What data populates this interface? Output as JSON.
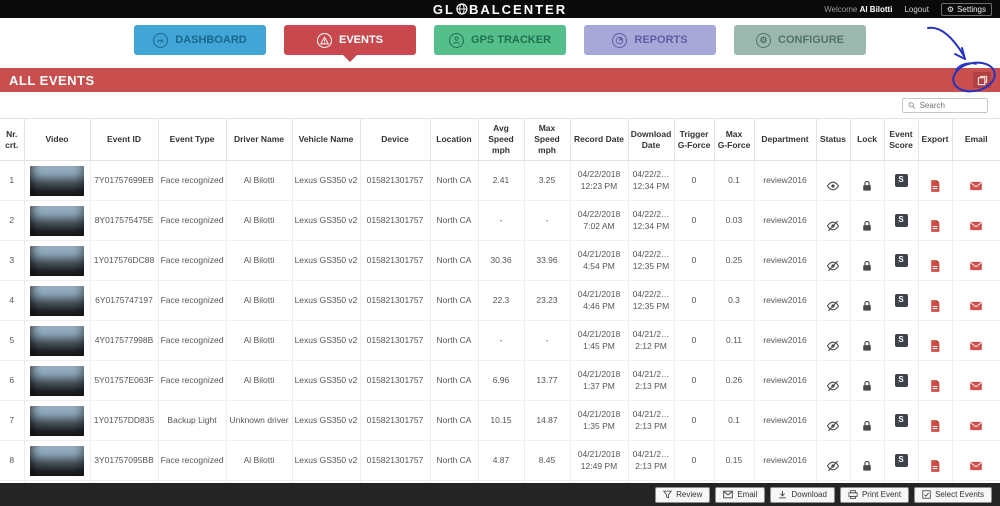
{
  "topbar": {
    "logo_prefix": "GL",
    "logo_suffix": "BALCENTER",
    "welcome_label": "Welcome",
    "user_name": "Al Bilotti",
    "logout_label": "Logout",
    "settings_label": "Settings"
  },
  "nav": {
    "tabs": [
      {
        "label": "DASHBOARD",
        "color": "#41a5d5",
        "active": false
      },
      {
        "label": "EVENTS",
        "color": "#c7494e",
        "active": true
      },
      {
        "label": "GPS TRACKER",
        "color": "#54bf8b",
        "active": false
      },
      {
        "label": "REPORTS",
        "color": "#a7a8d8",
        "active": false
      },
      {
        "label": "CONFIGURE",
        "color": "#9cb7ae",
        "active": false
      }
    ]
  },
  "banner": {
    "title": "ALL EVENTS",
    "color": "#c94f4f"
  },
  "search": {
    "placeholder": "Search"
  },
  "icons": {
    "settings_gear": "⚙",
    "configure_gear": "⚙",
    "score_badge": "S"
  },
  "colors": {
    "topbar_bg": "#0a0a0a",
    "accent_red": "#c7494e",
    "action_icon_red": "#d14f4a",
    "annotation_ink": "#2433c0"
  },
  "table": {
    "headers": [
      "Nr.\ncrt.",
      "Video",
      "Event ID",
      "Event Type",
      "Driver Name",
      "Vehicle Name",
      "Device",
      "Location",
      "Avg Speed\nmph",
      "Max Speed\nmph",
      "Record Date",
      "Download\nDate",
      "Trigger\nG-Force",
      "Max\nG-Force",
      "Department",
      "Status",
      "Lock",
      "Event\nScore",
      "Export",
      "Email"
    ],
    "rows": [
      {
        "nr": "1",
        "event_id": "7Y01757699EB",
        "event_type": "Face recognized",
        "driver": "Al Bilotti",
        "vehicle": "Lexus GS350 v2",
        "device": "015821301757",
        "location": "North CA",
        "avg_speed": "2.41",
        "max_speed": "3.25",
        "record_date": "04/22/2018\n12:23 PM",
        "download_date": "04/22/2…\n12:34 PM",
        "trigger_g": "0",
        "max_g": "0.1",
        "department": "review2016",
        "status": "visible"
      },
      {
        "nr": "2",
        "event_id": "8Y017575475E",
        "event_type": "Face recognized",
        "driver": "Al Bilotti",
        "vehicle": "Lexus GS350 v2",
        "device": "015821301757",
        "location": "North CA",
        "avg_speed": "-",
        "max_speed": "-",
        "record_date": "04/22/2018\n7:02 AM",
        "download_date": "04/22/2…\n12:34 PM",
        "trigger_g": "0",
        "max_g": "0.03",
        "department": "review2016",
        "status": "hidden"
      },
      {
        "nr": "3",
        "event_id": "1Y017576DC88",
        "event_type": "Face recognized",
        "driver": "Al Bilotti",
        "vehicle": "Lexus GS350 v2",
        "device": "015821301757",
        "location": "North CA",
        "avg_speed": "30.36",
        "max_speed": "33.96",
        "record_date": "04/21/2018\n4:54 PM",
        "download_date": "04/22/2…\n12:35 PM",
        "trigger_g": "0",
        "max_g": "0.25",
        "department": "review2016",
        "status": "hidden"
      },
      {
        "nr": "4",
        "event_id": "6Y0175747197",
        "event_type": "Face recognized",
        "driver": "Al Bilotti",
        "vehicle": "Lexus GS350 v2",
        "device": "015821301757",
        "location": "North CA",
        "avg_speed": "22.3",
        "max_speed": "23.23",
        "record_date": "04/21/2018\n4:46 PM",
        "download_date": "04/22/2…\n12:35 PM",
        "trigger_g": "0",
        "max_g": "0.3",
        "department": "review2016",
        "status": "hidden"
      },
      {
        "nr": "5",
        "event_id": "4Y017577998B",
        "event_type": "Face recognized",
        "driver": "Al Bilotti",
        "vehicle": "Lexus GS350 v2",
        "device": "015821301757",
        "location": "North CA",
        "avg_speed": "-",
        "max_speed": "-",
        "record_date": "04/21/2018\n1:45 PM",
        "download_date": "04/21/2…\n2:12 PM",
        "trigger_g": "0",
        "max_g": "0.11",
        "department": "review2016",
        "status": "hidden"
      },
      {
        "nr": "6",
        "event_id": "5Y01757E063F",
        "event_type": "Face recognized",
        "driver": "Al Bilotti",
        "vehicle": "Lexus GS350 v2",
        "device": "015821301757",
        "location": "North CA",
        "avg_speed": "6.96",
        "max_speed": "13.77",
        "record_date": "04/21/2018\n1:37 PM",
        "download_date": "04/21/2…\n2:13 PM",
        "trigger_g": "0",
        "max_g": "0.26",
        "department": "review2016",
        "status": "hidden"
      },
      {
        "nr": "7",
        "event_id": "1Y01757DD835",
        "event_type": "Backup Light",
        "driver": "Unknown driver",
        "vehicle": "Lexus GS350 v2",
        "device": "015821301757",
        "location": "North CA",
        "avg_speed": "10.15",
        "max_speed": "14.87",
        "record_date": "04/21/2018\n1:35 PM",
        "download_date": "04/21/2…\n2:13 PM",
        "trigger_g": "0",
        "max_g": "0.1",
        "department": "review2016",
        "status": "hidden"
      },
      {
        "nr": "8",
        "event_id": "3Y01757095BB",
        "event_type": "Face recognized",
        "driver": "Al Bilotti",
        "vehicle": "Lexus GS350 v2",
        "device": "015821301757",
        "location": "North CA",
        "avg_speed": "4.87",
        "max_speed": "8.45",
        "record_date": "04/21/2018\n12:49 PM",
        "download_date": "04/21/2…\n2:13 PM",
        "trigger_g": "0",
        "max_g": "0.15",
        "department": "review2016",
        "status": "hidden"
      },
      {
        "nr": "",
        "event_id": "",
        "event_type": "",
        "driver": "",
        "vehicle": "",
        "device": "",
        "location": "",
        "avg_speed": "",
        "max_speed": "",
        "record_date": "",
        "download_date": "",
        "trigger_g": "",
        "max_g": "",
        "department": "",
        "status": "hidden"
      }
    ]
  },
  "actionbar": {
    "buttons": [
      {
        "label": "Review"
      },
      {
        "label": "Email"
      },
      {
        "label": "Download"
      },
      {
        "label": "Print Event"
      },
      {
        "label": "Select Events"
      }
    ]
  }
}
